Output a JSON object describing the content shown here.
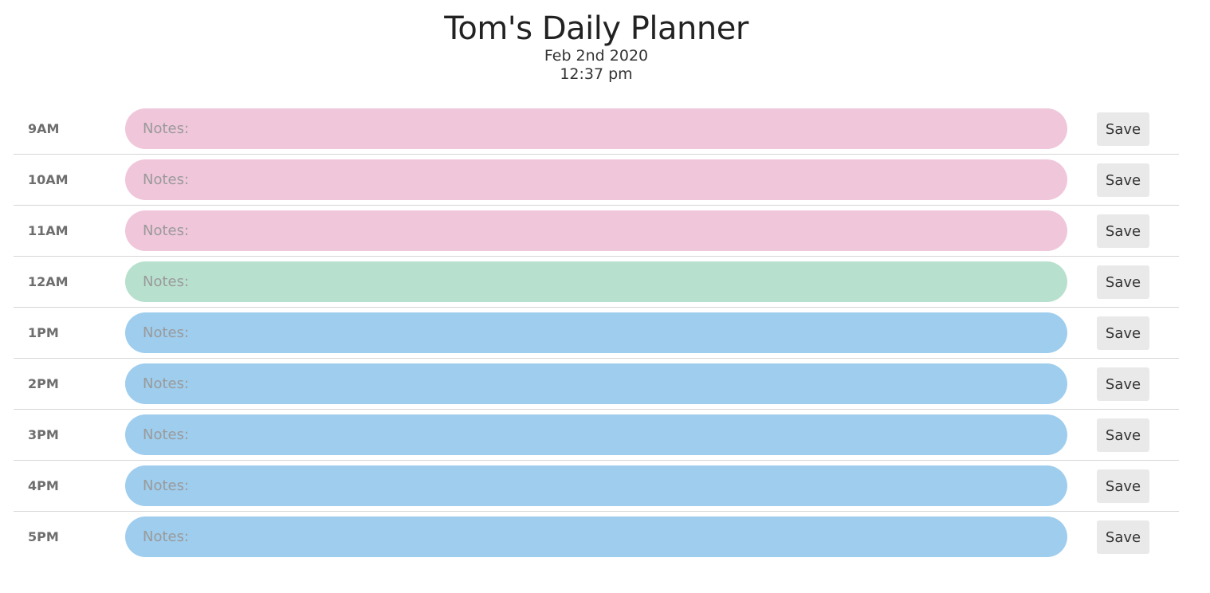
{
  "header": {
    "title": "Tom's Daily Planner",
    "date": "Feb 2nd 2020",
    "time": "12:37 pm"
  },
  "colors": {
    "past": "#f0c6da",
    "present": "#b8e0cf",
    "future": "#9ecdee",
    "save_button_bg": "#e9e9e9"
  },
  "rows": [
    {
      "hour": "9AM",
      "placeholder": "Notes:",
      "value": "",
      "status": "past",
      "save_label": "Save"
    },
    {
      "hour": "10AM",
      "placeholder": "Notes:",
      "value": "",
      "status": "past",
      "save_label": "Save"
    },
    {
      "hour": "11AM",
      "placeholder": "Notes:",
      "value": "",
      "status": "past",
      "save_label": "Save"
    },
    {
      "hour": "12AM",
      "placeholder": "Notes:",
      "value": "",
      "status": "present",
      "save_label": "Save"
    },
    {
      "hour": "1PM",
      "placeholder": "Notes:",
      "value": "",
      "status": "future",
      "save_label": "Save"
    },
    {
      "hour": "2PM",
      "placeholder": "Notes:",
      "value": "",
      "status": "future",
      "save_label": "Save"
    },
    {
      "hour": "3PM",
      "placeholder": "Notes:",
      "value": "",
      "status": "future",
      "save_label": "Save"
    },
    {
      "hour": "4PM",
      "placeholder": "Notes:",
      "value": "",
      "status": "future",
      "save_label": "Save"
    },
    {
      "hour": "5PM",
      "placeholder": "Notes:",
      "value": "",
      "status": "future",
      "save_label": "Save"
    }
  ]
}
